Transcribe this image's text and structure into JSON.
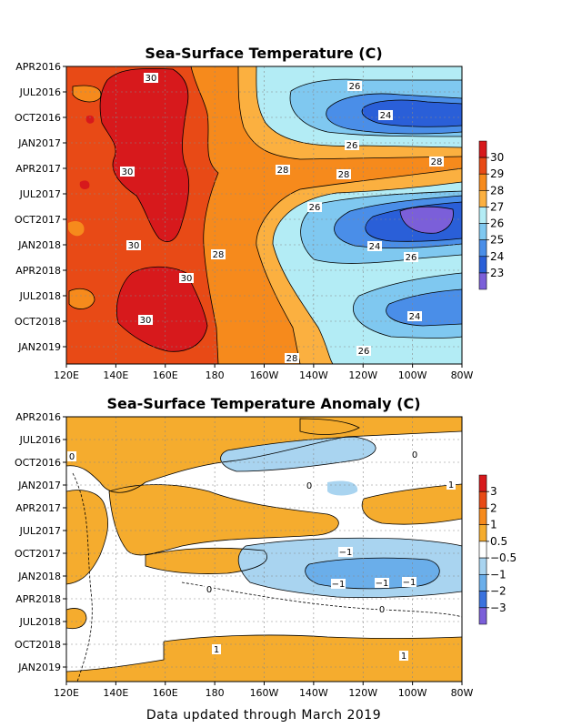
{
  "footer": "Data updated through March 2019",
  "chart_data": [
    {
      "type": "heatmap",
      "title": "Sea-Surface Temperature (C)",
      "x_tick_labels": [
        "120E",
        "140E",
        "160E",
        "180",
        "160W",
        "140W",
        "120W",
        "100W",
        "80W"
      ],
      "y_tick_labels": [
        "APR2016",
        "JUL2016",
        "OCT2016",
        "JAN2017",
        "APR2017",
        "JUL2017",
        "OCT2017",
        "JAN2018",
        "APR2018",
        "JUL2018",
        "OCT2018",
        "JAN2019"
      ],
      "colorbar": {
        "labels": [
          "30",
          "29",
          "28",
          "27",
          "26",
          "25",
          "24",
          "23"
        ],
        "colors": [
          "#d7191c",
          "#e84a16",
          "#f68a1c",
          "#fbb040",
          "#b3ecf5",
          "#7fc8f0",
          "#4a8ee8",
          "#2a5fd8",
          "#7b5fd9"
        ]
      },
      "contour_labels": [
        "30",
        "30",
        "30",
        "30",
        "30",
        "28",
        "28",
        "28",
        "26",
        "26",
        "26",
        "26",
        "26",
        "24",
        "24",
        "24",
        "28",
        "28"
      ]
    },
    {
      "type": "heatmap",
      "title": "Sea-Surface Temperature Anomaly (C)",
      "x_tick_labels": [
        "120E",
        "140E",
        "160E",
        "180",
        "160W",
        "140W",
        "120W",
        "100W",
        "80W"
      ],
      "y_tick_labels": [
        "APR2016",
        "JUL2016",
        "OCT2016",
        "JAN2017",
        "APR2017",
        "JUL2017",
        "OCT2017",
        "JAN2018",
        "APR2018",
        "JUL2018",
        "OCT2018",
        "JAN2019"
      ],
      "colorbar": {
        "labels": [
          "3",
          "2",
          "1",
          "0.5",
          "−0.5",
          "−1",
          "−2",
          "−3"
        ],
        "colors": [
          "#d7191c",
          "#e84a16",
          "#f68a1c",
          "#f5ac2e",
          "#ffffff",
          "#a9d4f0",
          "#6aaeea",
          "#3a72de",
          "#7b5fd9"
        ]
      },
      "contour_labels": [
        "1",
        "1",
        "1",
        "0",
        "0",
        "0",
        "0",
        "0",
        "−1",
        "−1",
        "−1",
        "−1"
      ]
    }
  ]
}
